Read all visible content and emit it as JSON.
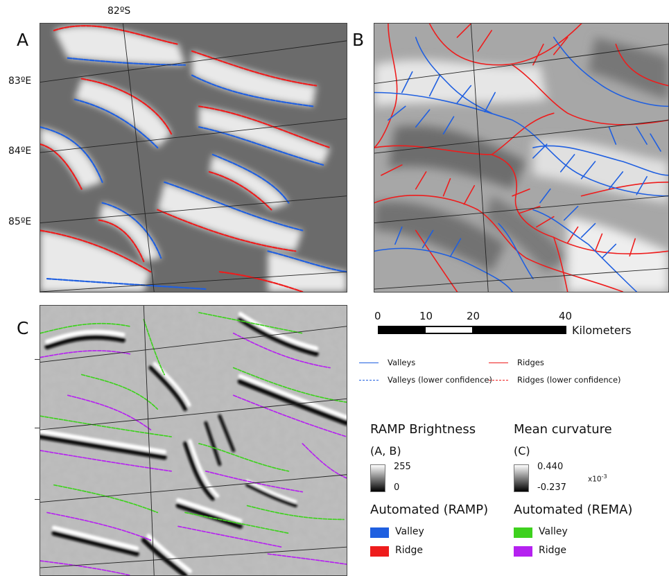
{
  "panels": {
    "a": "A",
    "b": "B",
    "c": "C"
  },
  "coords": {
    "lat": "82ºS",
    "lon1": "83ºE",
    "lon2": "84ºE",
    "lon3": "85ºE"
  },
  "scalebar": {
    "t0": "0",
    "t10": "10",
    "t20": "20",
    "t40": "40",
    "unit": "Kilometers"
  },
  "legend_lines": {
    "valleys": "Valleys",
    "ridges": "Ridges",
    "valleys_lc": "Valleys (lower confidence)",
    "ridges_lc": "Ridges (lower confidence)"
  },
  "ramp": {
    "title": "RAMP Brightness",
    "sub": "(A, B)",
    "max": "255",
    "min": "0",
    "auto": "Automated (RAMP)",
    "valley": "Valley",
    "ridge": "Ridge"
  },
  "rema": {
    "title": "Mean curvature",
    "sub": "(C)",
    "max": "0.440",
    "min": "-0.237",
    "mult": "x10",
    "exp": "-3",
    "auto": "Automated (REMA)",
    "valley": "Valley",
    "ridge": "Ridge"
  },
  "colors": {
    "valley_ramp": "#1f5fe0",
    "ridge_ramp": "#ee1c1c",
    "valley_rema": "#3ed11e",
    "ridge_rema": "#b521f0"
  }
}
